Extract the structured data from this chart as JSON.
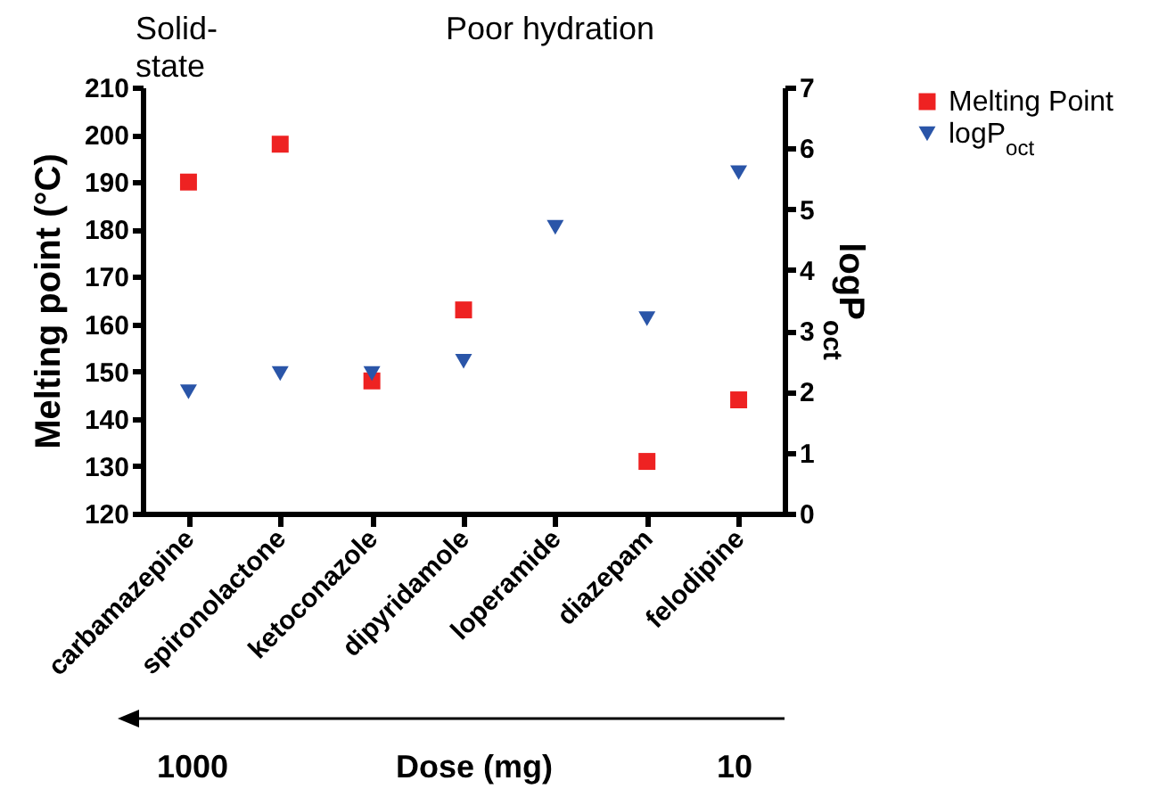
{
  "chart_data": {
    "type": "scatter",
    "xlabel": "Dose (mg)",
    "ylabel": "Melting point (°C)",
    "y2label": "logP$_{oct}$",
    "categories": [
      "carbamazepine",
      "spironolactone",
      "ketoconazole",
      "dipyridamole",
      "loperamide",
      "diazepam",
      "felodipine"
    ],
    "series": [
      {
        "name": "Melting Point",
        "color": "#ee2222",
        "marker": "square",
        "values": [
          190,
          198,
          148,
          163,
          null,
          131,
          144
        ]
      },
      {
        "name": "logP$_{oct}$",
        "color": "#2a55a8",
        "marker": "triangle",
        "axis": "y2",
        "values": [
          2.0,
          2.3,
          2.3,
          2.5,
          4.7,
          3.2,
          5.6
        ]
      }
    ],
    "ylim": [
      120,
      210
    ],
    "yticks": [
      120,
      130,
      140,
      150,
      160,
      170,
      180,
      190,
      200,
      210
    ],
    "y2lim": [
      0,
      7
    ],
    "y2ticks": [
      0,
      1,
      2,
      3,
      4,
      5,
      6,
      7
    ],
    "annotations": [
      "Solid-state",
      "Poor hydration",
      "1000",
      "10"
    ],
    "grid": false,
    "legend": "top right"
  }
}
